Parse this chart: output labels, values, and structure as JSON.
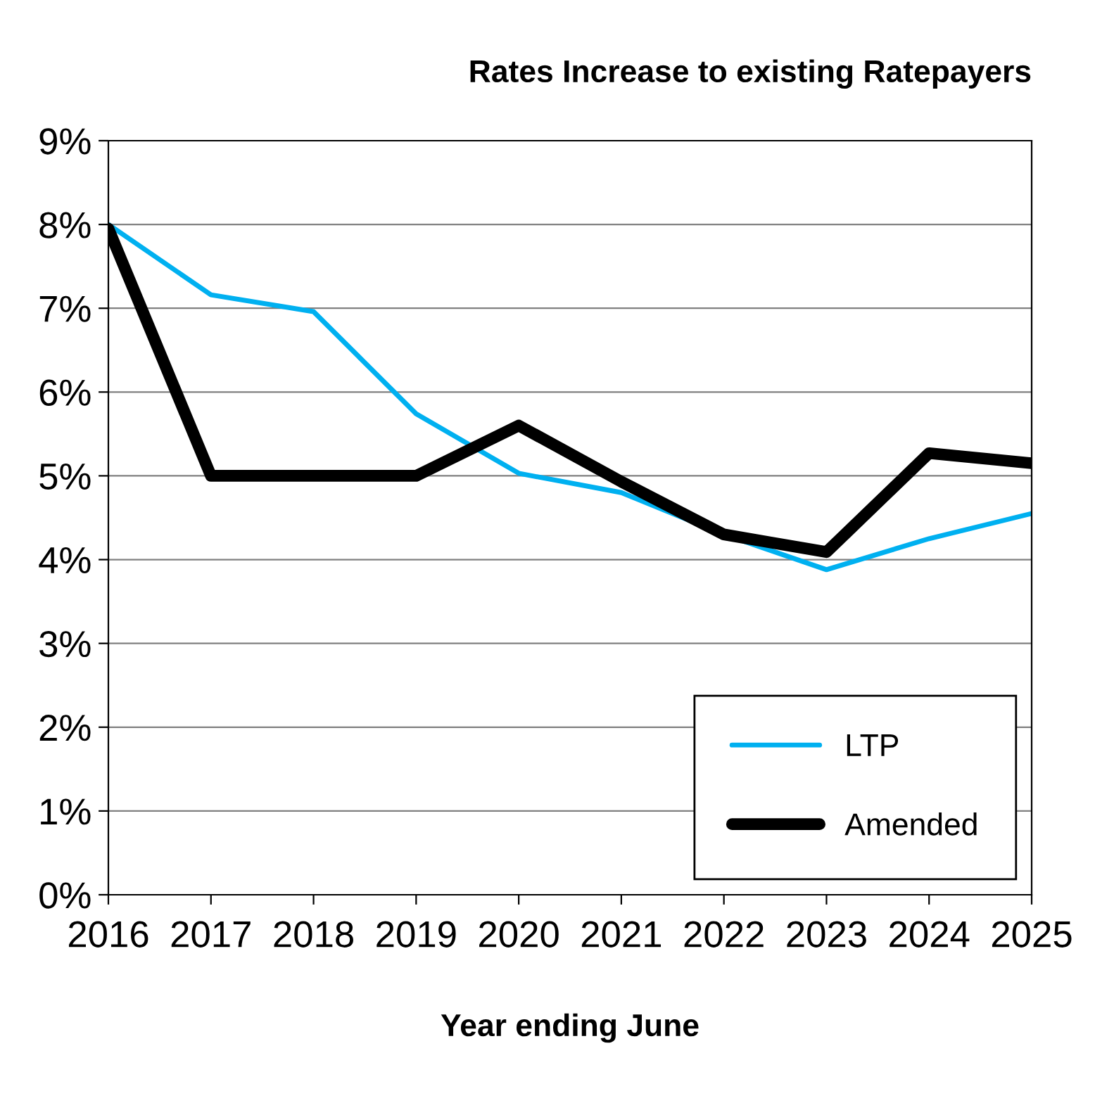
{
  "chart_data": {
    "type": "line",
    "title": "Rates Increase to existing Ratepayers",
    "xlabel": "Year ending June",
    "x": [
      2016,
      2017,
      2018,
      2019,
      2020,
      2021,
      2022,
      2023,
      2024,
      2025
    ],
    "series": [
      {
        "name": "LTP",
        "color": "#00b0f0",
        "values": [
          8.0,
          7.16,
          6.96,
          5.74,
          5.03,
          4.8,
          4.3,
          3.88,
          4.25,
          4.55
        ]
      },
      {
        "name": "Amended",
        "color": "#000000",
        "values": [
          7.95,
          5.0,
          5.0,
          5.0,
          5.6,
          4.93,
          4.3,
          4.09,
          5.27,
          5.15
        ]
      }
    ],
    "xlim": [
      2016,
      2025
    ],
    "xticks": [
      2016,
      2017,
      2018,
      2019,
      2020,
      2021,
      2022,
      2023,
      2024,
      2025
    ],
    "ylim": [
      0,
      9
    ],
    "yticks": [
      {
        "value": 0,
        "label": "0%"
      },
      {
        "value": 1,
        "label": "1%"
      },
      {
        "value": 2,
        "label": "2%"
      },
      {
        "value": 3,
        "label": "3%"
      },
      {
        "value": 4,
        "label": "4%"
      },
      {
        "value": 5,
        "label": "5%"
      },
      {
        "value": 6,
        "label": "6%"
      },
      {
        "value": 7,
        "label": "7%"
      },
      {
        "value": 8,
        "label": "8%"
      },
      {
        "value": 9,
        "label": "9%"
      }
    ],
    "grid": "y",
    "legend": "bottom right",
    "marker": "none",
    "line_style": "solid"
  }
}
